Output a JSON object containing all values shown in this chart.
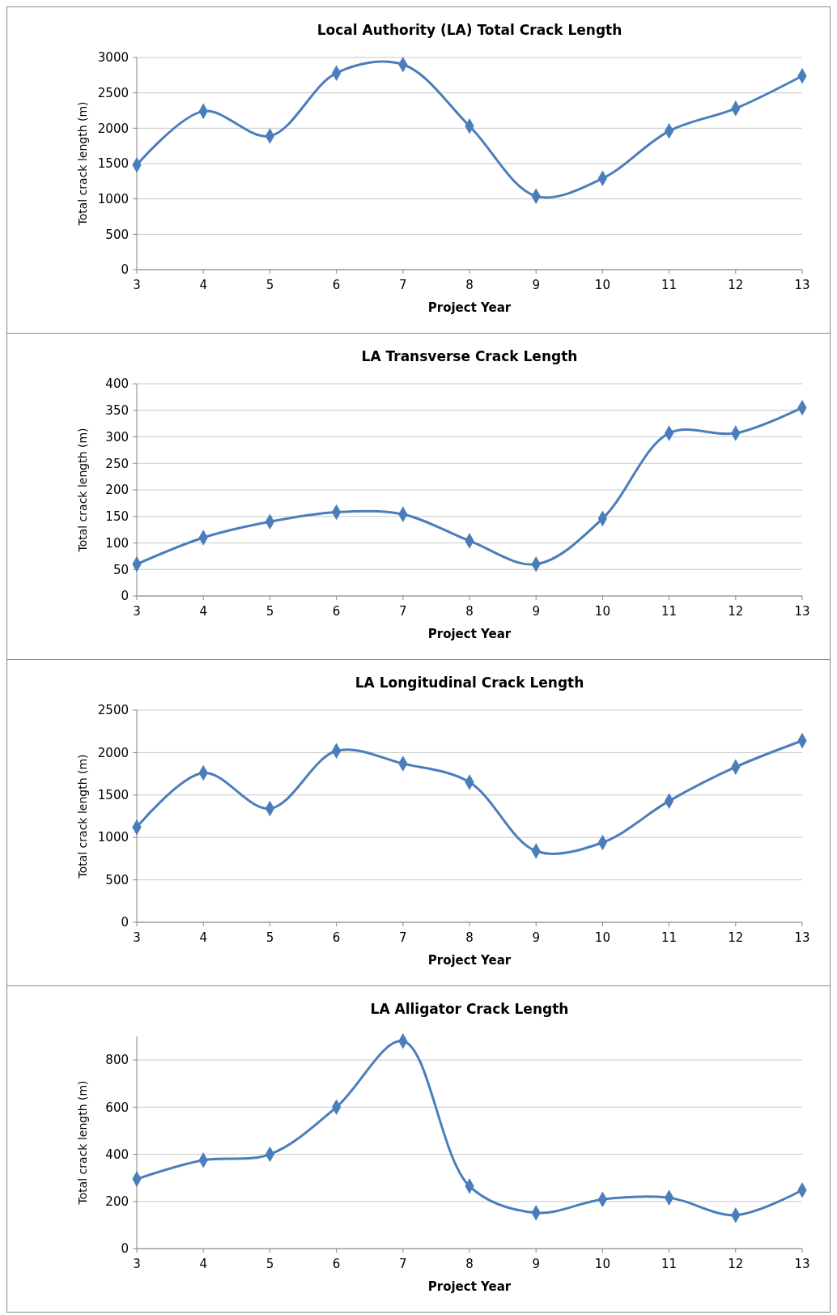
{
  "chart_data": [
    {
      "type": "line",
      "title": "Local Authority (LA) Total Crack Length",
      "xlabel": "Project Year",
      "ylabel": "Total crack length (m)",
      "categories": [
        "3",
        "4",
        "5",
        "6",
        "7",
        "8",
        "9",
        "10",
        "11",
        "12",
        "13"
      ],
      "series": [
        {
          "color": "#4a7ebb",
          "values": [
            1480,
            2240,
            1890,
            2780,
            2900,
            2030,
            1040,
            1290,
            1960,
            2280,
            2740
          ]
        }
      ],
      "ylim": [
        0,
        3000
      ],
      "yticks": [
        0,
        500,
        1000,
        1500,
        2000,
        2500,
        3000
      ],
      "grid": "y",
      "marker": "diamond",
      "line_style": "solid"
    },
    {
      "type": "line",
      "title": "LA Transverse Crack Length",
      "xlabel": "Project Year",
      "ylabel": "Total crack length (m)",
      "categories": [
        "3",
        "4",
        "5",
        "6",
        "7",
        "8",
        "9",
        "10",
        "11",
        "12",
        "13"
      ],
      "series": [
        {
          "color": "#4a7ebb",
          "values": [
            60,
            110,
            140,
            158,
            154,
            104,
            60,
            146,
            307,
            307,
            355
          ]
        }
      ],
      "ylim": [
        0,
        400
      ],
      "yticks": [
        0,
        50,
        100,
        150,
        200,
        250,
        300,
        350,
        400
      ],
      "grid": "y",
      "marker": "diamond",
      "line_style": "solid"
    },
    {
      "type": "line",
      "title": "LA Longitudinal Crack Length",
      "xlabel": "Project Year",
      "ylabel": "Total crack length (m)",
      "categories": [
        "3",
        "4",
        "5",
        "6",
        "7",
        "8",
        "9",
        "10",
        "11",
        "12",
        "13"
      ],
      "series": [
        {
          "color": "#4a7ebb",
          "values": [
            1120,
            1760,
            1340,
            2020,
            1870,
            1650,
            840,
            940,
            1430,
            1830,
            2140
          ]
        }
      ],
      "ylim": [
        0,
        2500
      ],
      "yticks": [
        0,
        500,
        1000,
        1500,
        2000,
        2500
      ],
      "grid": "y",
      "marker": "diamond",
      "line_style": "solid"
    },
    {
      "type": "line",
      "title": "LA Alligator Crack Length",
      "xlabel": "Project Year",
      "ylabel": "Total crack length (m)",
      "categories": [
        "3",
        "4",
        "5",
        "6",
        "7",
        "8",
        "9",
        "10",
        "11",
        "12",
        "13"
      ],
      "series": [
        {
          "color": "#4a7ebb",
          "values": [
            295,
            375,
            400,
            600,
            880,
            265,
            152,
            209,
            216,
            142,
            248
          ]
        }
      ],
      "ylim": [
        0,
        900
      ],
      "yticks": [
        0,
        200,
        400,
        600,
        800
      ],
      "grid": "y",
      "marker": "diamond",
      "line_style": "solid"
    }
  ]
}
